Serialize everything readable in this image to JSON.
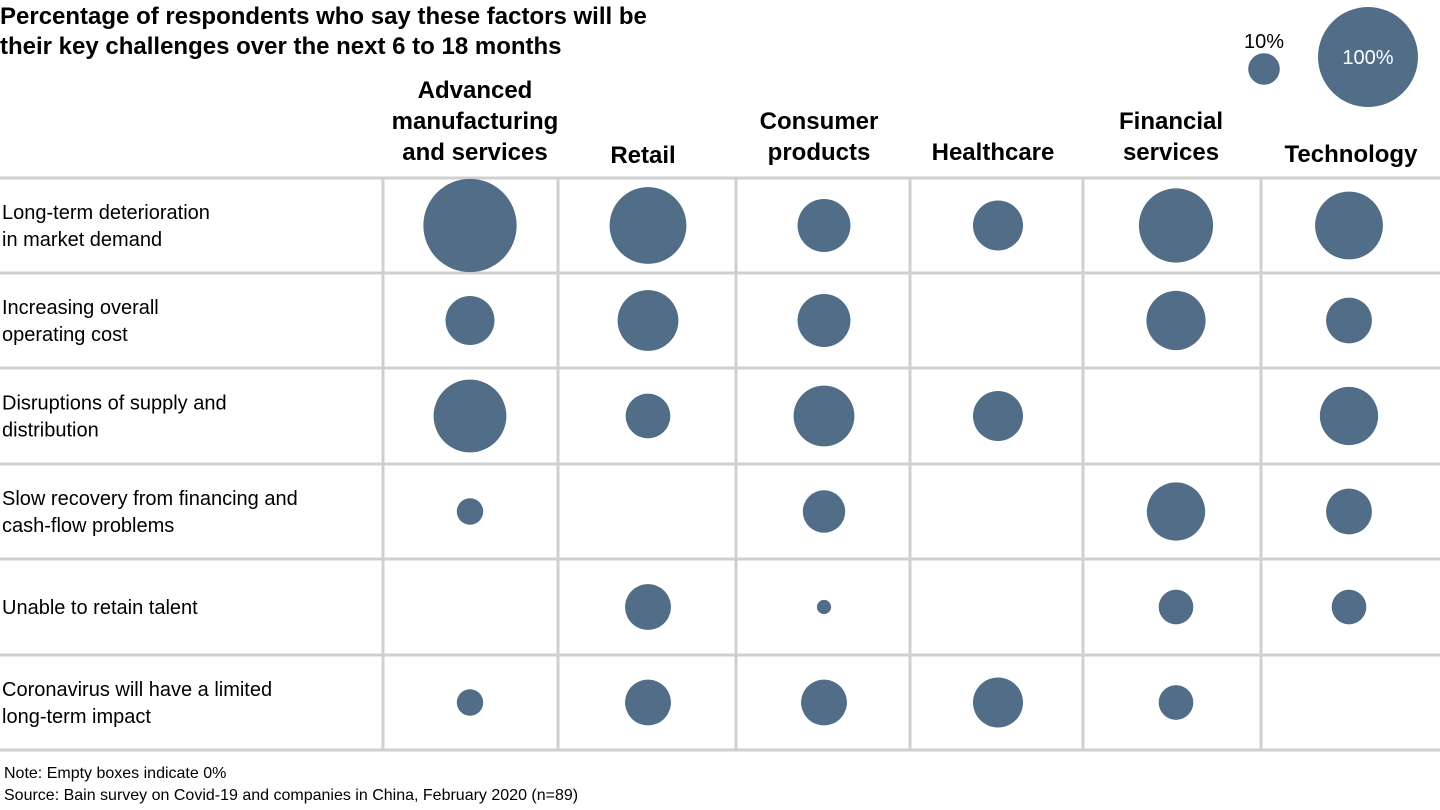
{
  "chart_data": {
    "type": "bubble-matrix",
    "title": [
      "Percentage of respondents who say these factors will be",
      "their key challenges over the next 6 to 18 months"
    ],
    "legend": {
      "placement": "top-right",
      "items": [
        {
          "label": "10%",
          "value": 10
        },
        {
          "label": "100%",
          "value": 100
        }
      ]
    },
    "columns": [
      [
        "Advanced",
        "manufacturing",
        "and services"
      ],
      [
        "Retail"
      ],
      [
        "Consumer",
        "products"
      ],
      [
        "Healthcare"
      ],
      [
        "Financial",
        "services"
      ],
      [
        "Technology"
      ]
    ],
    "rows": [
      {
        "label": [
          "Long-term deterioration",
          "in market demand"
        ],
        "values": [
          87,
          59,
          28,
          25,
          55,
          46
        ]
      },
      {
        "label": [
          "Increasing overall",
          "operating cost"
        ],
        "values": [
          24,
          37,
          28,
          0,
          35,
          21
        ]
      },
      {
        "label": [
          "Disruptions of supply and",
          "distribution"
        ],
        "values": [
          53,
          20,
          37,
          25,
          0,
          34
        ]
      },
      {
        "label": [
          "Slow recovery from financing and",
          "cash-flow problems"
        ],
        "values": [
          7,
          0,
          18,
          0,
          34,
          21
        ]
      },
      {
        "label": [
          "Unable to retain talent"
        ],
        "values": [
          0,
          21,
          2,
          0,
          12,
          12
        ]
      },
      {
        "label": [
          "Coronavirus will have a limited",
          "long-term impact"
        ],
        "values": [
          7,
          21,
          21,
          25,
          12,
          0
        ]
      }
    ],
    "unit": "%",
    "size_encoding": "area"
  },
  "notes": [
    "Note: Empty boxes indicate 0%",
    "Source: Bain survey on Covid-19 and companies in China, February 2020 (n=89)"
  ],
  "colors": {
    "bubble": "#516d87",
    "grid": "#d0d0d0",
    "legend_text_inside": "#ffffff"
  }
}
